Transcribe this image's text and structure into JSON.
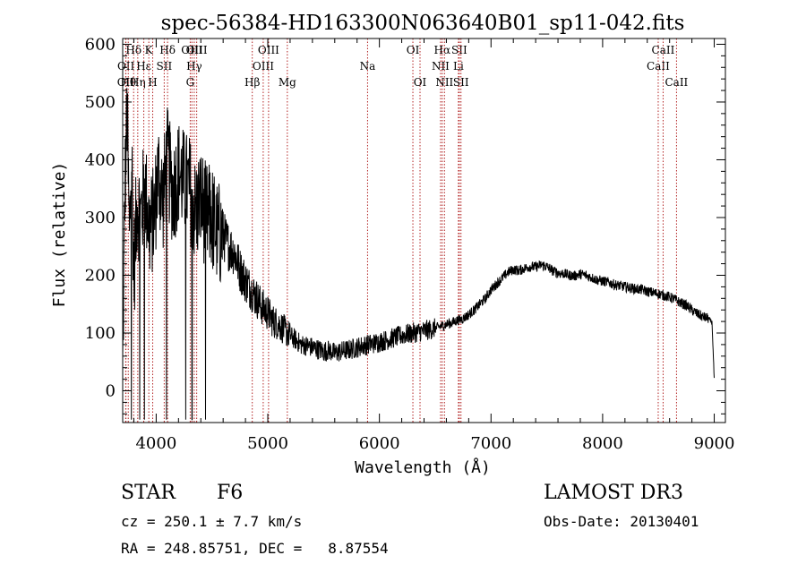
{
  "chart_data": {
    "type": "line",
    "title": "spec-56384-HD163300N063640B01_sp11-042.fits",
    "xlabel": "Wavelength (Å)",
    "ylabel": "Flux (relative)",
    "xlim": [
      3700,
      9100
    ],
    "ylim": [
      -55,
      610
    ],
    "xticks": [
      4000,
      5000,
      6000,
      7000,
      8000,
      9000
    ],
    "yticks": [
      0,
      100,
      200,
      300,
      400,
      500,
      600
    ],
    "grid": false,
    "line_color": "#000000",
    "marker_color": "#b22222",
    "series": [
      {
        "x": [
          3700,
          3720,
          3740,
          3760,
          3780,
          3800,
          3830,
          3860,
          3900,
          3940,
          3980,
          4020,
          4060,
          4100,
          4150,
          4200,
          4250,
          4300,
          4350,
          4400,
          4450,
          4500,
          4550,
          4600,
          4650,
          4700,
          4750,
          4800,
          4850,
          4900,
          4950,
          5000,
          5050,
          5100,
          5150,
          5200,
          5250,
          5300,
          5350,
          5400,
          5450,
          5500,
          5550,
          5600,
          5650,
          5700,
          5750,
          5800,
          5850,
          5900,
          5950,
          6000,
          6050,
          6100,
          6150,
          6200,
          6250,
          6300,
          6350,
          6400,
          6450,
          6500,
          6550,
          6600,
          6650,
          6700,
          6750,
          6800,
          6850,
          6900,
          6950,
          7000,
          7050,
          7100,
          7150,
          7200,
          7250,
          7300,
          7350,
          7400,
          7450,
          7500,
          7550,
          7600,
          7650,
          7700,
          7750,
          7800,
          7850,
          7900,
          7950,
          8000,
          8050,
          8100,
          8150,
          8200,
          8250,
          8300,
          8350,
          8400,
          8450,
          8500,
          8550,
          8600,
          8650,
          8700,
          8750,
          8800,
          8850,
          8900,
          8950,
          8980,
          9000
        ],
        "y": [
          30,
          350,
          480,
          260,
          420,
          200,
          330,
          300,
          350,
          280,
          300,
          380,
          330,
          400,
          340,
          380,
          360,
          350,
          310,
          330,
          300,
          300,
          270,
          270,
          250,
          240,
          210,
          190,
          175,
          160,
          145,
          135,
          120,
          115,
          105,
          95,
          88,
          80,
          78,
          75,
          72,
          68,
          70,
          65,
          68,
          70,
          72,
          75,
          78,
          80,
          82,
          85,
          87,
          90,
          93,
          96,
          98,
          100,
          102,
          104,
          106,
          108,
          112,
          115,
          118,
          122,
          125,
          132,
          140,
          150,
          160,
          175,
          185,
          195,
          205,
          210,
          208,
          212,
          215,
          214,
          218,
          215,
          208,
          204,
          203,
          200,
          199,
          202,
          200,
          196,
          192,
          190,
          188,
          184,
          182,
          180,
          178,
          176,
          175,
          172,
          170,
          168,
          165,
          162,
          158,
          152,
          148,
          140,
          133,
          128,
          125,
          118,
          20
        ]
      }
    ],
    "lines": [
      {
        "label": "OII",
        "wl": 3727,
        "row": 2
      },
      {
        "label": "OII",
        "wl": 3729,
        "row": 1
      },
      {
        "label": "Hθ",
        "wl": 3750,
        "row": 2
      },
      {
        "label": "Hδ",
        "wl": 3798,
        "row": 0
      },
      {
        "label": "Hη",
        "wl": 3835,
        "row": 2
      },
      {
        "label": "Hε",
        "wl": 3889,
        "row": 1
      },
      {
        "label": "K",
        "wl": 3934,
        "row": 0
      },
      {
        "label": "H",
        "wl": 3969,
        "row": 2
      },
      {
        "label": "SII",
        "wl": 4072,
        "row": 1
      },
      {
        "label": "Hδ",
        "wl": 4102,
        "row": 0
      },
      {
        "label": "OIII",
        "wl": 4320,
        "row": 0
      },
      {
        "label": "G",
        "wl": 4305,
        "row": 2
      },
      {
        "label": "Hγ",
        "wl": 4341,
        "row": 1
      },
      {
        "label": "OIII",
        "wl": 4363,
        "row": 0
      },
      {
        "label": "Hβ",
        "wl": 4861,
        "row": 2
      },
      {
        "label": "OIII",
        "wl": 4959,
        "row": 1
      },
      {
        "label": "OIII",
        "wl": 5007,
        "row": 0
      },
      {
        "label": "Mg",
        "wl": 5175,
        "row": 2
      },
      {
        "label": "Na",
        "wl": 5894,
        "row": 1
      },
      {
        "label": "OI",
        "wl": 6300,
        "row": 0
      },
      {
        "label": "OI",
        "wl": 6364,
        "row": 2
      },
      {
        "label": "NII",
        "wl": 6548,
        "row": 1
      },
      {
        "label": "Hα",
        "wl": 6563,
        "row": 0
      },
      {
        "label": "NII",
        "wl": 6583,
        "row": 2
      },
      {
        "label": "SII",
        "wl": 6716,
        "row": 0
      },
      {
        "label": "Li",
        "wl": 6708,
        "row": 1
      },
      {
        "label": "SII",
        "wl": 6731,
        "row": 2
      },
      {
        "label": "CaII",
        "wl": 8498,
        "row": 1
      },
      {
        "label": "CaII",
        "wl": 8542,
        "row": 0
      },
      {
        "label": "CaII",
        "wl": 8662,
        "row": 2
      }
    ]
  },
  "info": {
    "object_class": "STAR",
    "subclass": "F6",
    "survey": "LAMOST DR3",
    "cz": "cz = 250.1 ± 7.7 km/s",
    "obs_date": "Obs-Date: 20130401",
    "coords": "RA = 248.85751, DEC =   8.87554"
  }
}
